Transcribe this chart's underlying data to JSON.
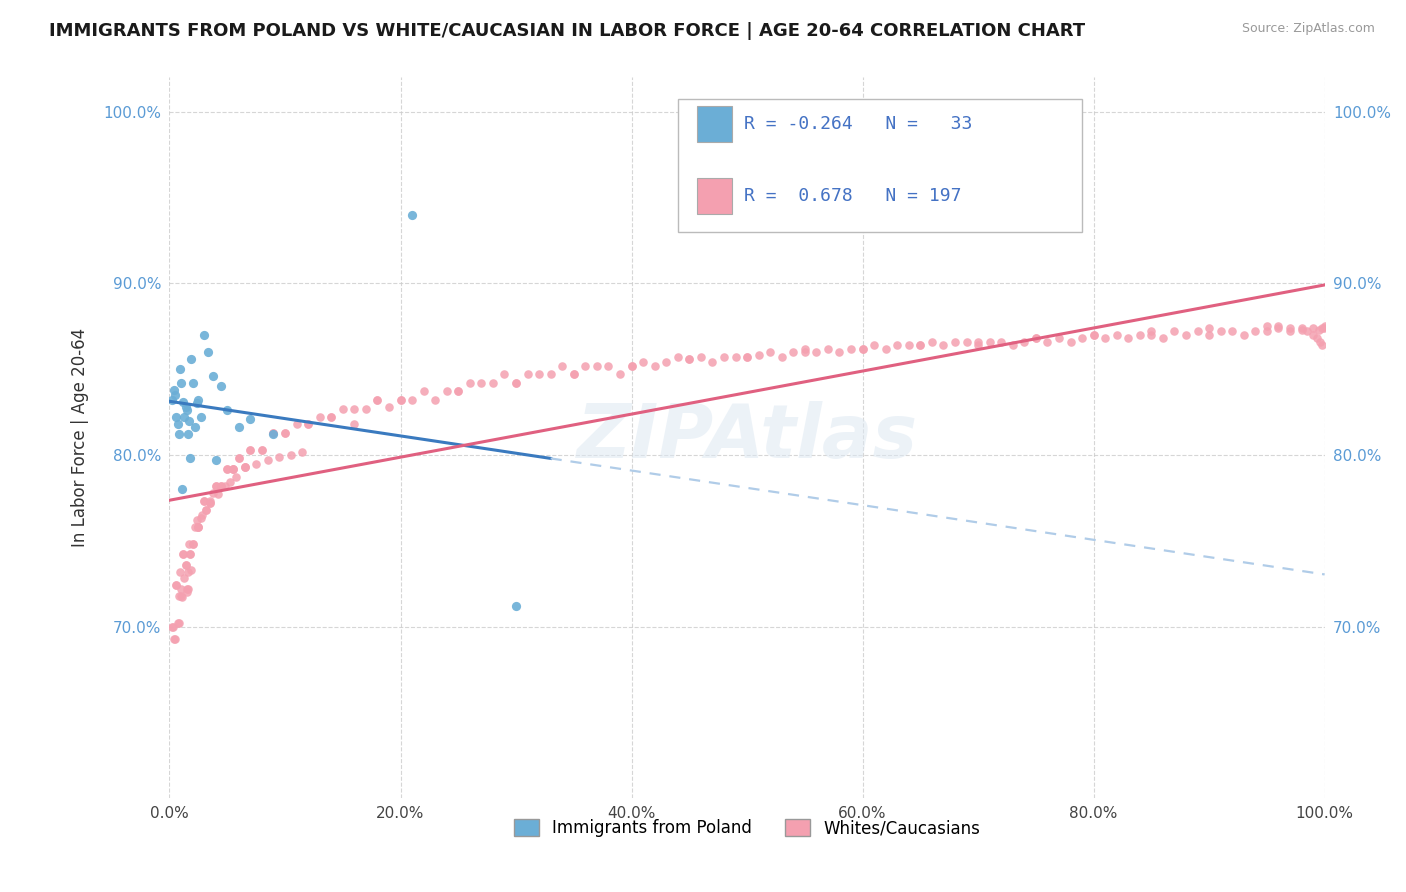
{
  "title": "IMMIGRANTS FROM POLAND VS WHITE/CAUCASIAN IN LABOR FORCE | AGE 20-64 CORRELATION CHART",
  "source": "Source: ZipAtlas.com",
  "ylabel": "In Labor Force | Age 20-64",
  "watermark": "ZIPAtlas",
  "legend_label1": "Immigrants from Poland",
  "legend_label2": "Whites/Caucasians",
  "color_blue": "#6baed6",
  "color_pink": "#f4a0b0",
  "color_blue_line": "#3a7abf",
  "color_pink_line": "#e06080",
  "color_blue_dashed": "#b0cce8",
  "xlim": [
    0.0,
    1.0
  ],
  "ylim": [
    0.6,
    1.02
  ],
  "x_ticks": [
    0.0,
    0.2,
    0.4,
    0.6,
    0.8,
    1.0
  ],
  "x_tick_labels": [
    "0.0%",
    "20.0%",
    "40.0%",
    "60.0%",
    "80.0%",
    "100.0%"
  ],
  "y_ticks": [
    0.7,
    0.8,
    0.9,
    1.0
  ],
  "y_tick_labels": [
    "70.0%",
    "80.0%",
    "90.0%",
    "100.0%"
  ],
  "blue_x": [
    0.002,
    0.004,
    0.005,
    0.006,
    0.007,
    0.008,
    0.009,
    0.01,
    0.011,
    0.012,
    0.013,
    0.014,
    0.015,
    0.016,
    0.017,
    0.018,
    0.019,
    0.02,
    0.022,
    0.024,
    0.025,
    0.027,
    0.03,
    0.033,
    0.038,
    0.04,
    0.045,
    0.05,
    0.06,
    0.07,
    0.09,
    0.21,
    0.3
  ],
  "blue_y": [
    0.832,
    0.838,
    0.835,
    0.822,
    0.818,
    0.812,
    0.85,
    0.842,
    0.78,
    0.831,
    0.822,
    0.828,
    0.826,
    0.812,
    0.82,
    0.798,
    0.856,
    0.842,
    0.816,
    0.83,
    0.832,
    0.822,
    0.87,
    0.86,
    0.846,
    0.797,
    0.84,
    0.826,
    0.816,
    0.821,
    0.812,
    0.94,
    0.712
  ],
  "pink_x": [
    0.003,
    0.005,
    0.006,
    0.007,
    0.008,
    0.009,
    0.01,
    0.011,
    0.012,
    0.013,
    0.014,
    0.015,
    0.016,
    0.017,
    0.018,
    0.019,
    0.02,
    0.022,
    0.024,
    0.025,
    0.027,
    0.03,
    0.032,
    0.035,
    0.038,
    0.04,
    0.045,
    0.05,
    0.055,
    0.06,
    0.065,
    0.07,
    0.08,
    0.09,
    0.1,
    0.11,
    0.12,
    0.13,
    0.14,
    0.15,
    0.16,
    0.17,
    0.18,
    0.19,
    0.2,
    0.21,
    0.22,
    0.23,
    0.24,
    0.25,
    0.26,
    0.27,
    0.28,
    0.29,
    0.3,
    0.31,
    0.32,
    0.33,
    0.34,
    0.35,
    0.36,
    0.37,
    0.38,
    0.39,
    0.4,
    0.41,
    0.42,
    0.43,
    0.44,
    0.45,
    0.46,
    0.47,
    0.48,
    0.49,
    0.5,
    0.51,
    0.52,
    0.53,
    0.54,
    0.55,
    0.56,
    0.57,
    0.58,
    0.59,
    0.6,
    0.61,
    0.62,
    0.63,
    0.64,
    0.65,
    0.66,
    0.67,
    0.68,
    0.69,
    0.7,
    0.71,
    0.72,
    0.73,
    0.74,
    0.75,
    0.76,
    0.77,
    0.78,
    0.79,
    0.8,
    0.81,
    0.82,
    0.83,
    0.84,
    0.85,
    0.86,
    0.87,
    0.88,
    0.89,
    0.9,
    0.91,
    0.92,
    0.93,
    0.94,
    0.95,
    0.96,
    0.97,
    0.98,
    0.99,
    0.995,
    0.998,
    0.999,
    1.0,
    0.002,
    0.004,
    0.006,
    0.008,
    0.01,
    0.012,
    0.014,
    0.016,
    0.018,
    0.02,
    0.025,
    0.03,
    0.035,
    0.04,
    0.045,
    0.05,
    0.055,
    0.06,
    0.065,
    0.07,
    0.08,
    0.09,
    0.1,
    0.12,
    0.14,
    0.16,
    0.18,
    0.2,
    0.25,
    0.3,
    0.35,
    0.4,
    0.45,
    0.5,
    0.55,
    0.6,
    0.65,
    0.7,
    0.75,
    0.8,
    0.85,
    0.9,
    0.95,
    0.96,
    0.97,
    0.98,
    0.985,
    0.99,
    0.993,
    0.996,
    0.998,
    0.055,
    0.065,
    0.075,
    0.085,
    0.095,
    0.105,
    0.115,
    0.015,
    0.025,
    0.035,
    0.028,
    0.032,
    0.042,
    0.048,
    0.052,
    0.058
  ],
  "pink_y": [
    0.7,
    0.693,
    0.724,
    0.702,
    0.718,
    0.732,
    0.722,
    0.717,
    0.742,
    0.728,
    0.736,
    0.722,
    0.732,
    0.748,
    0.742,
    0.733,
    0.748,
    0.758,
    0.762,
    0.758,
    0.763,
    0.773,
    0.768,
    0.772,
    0.778,
    0.782,
    0.782,
    0.792,
    0.792,
    0.798,
    0.793,
    0.803,
    0.803,
    0.813,
    0.813,
    0.818,
    0.818,
    0.822,
    0.822,
    0.827,
    0.818,
    0.827,
    0.832,
    0.828,
    0.832,
    0.832,
    0.837,
    0.832,
    0.837,
    0.837,
    0.842,
    0.842,
    0.842,
    0.847,
    0.842,
    0.847,
    0.847,
    0.847,
    0.852,
    0.847,
    0.852,
    0.852,
    0.852,
    0.847,
    0.852,
    0.854,
    0.852,
    0.854,
    0.857,
    0.856,
    0.857,
    0.854,
    0.857,
    0.857,
    0.857,
    0.858,
    0.86,
    0.857,
    0.86,
    0.862,
    0.86,
    0.862,
    0.86,
    0.862,
    0.862,
    0.864,
    0.862,
    0.864,
    0.864,
    0.864,
    0.866,
    0.864,
    0.866,
    0.866,
    0.864,
    0.866,
    0.866,
    0.864,
    0.866,
    0.868,
    0.866,
    0.868,
    0.866,
    0.868,
    0.87,
    0.868,
    0.87,
    0.868,
    0.87,
    0.87,
    0.868,
    0.872,
    0.87,
    0.872,
    0.87,
    0.872,
    0.872,
    0.87,
    0.872,
    0.872,
    0.874,
    0.872,
    0.874,
    0.874,
    0.873,
    0.874,
    0.874,
    0.875,
    0.7,
    0.693,
    0.724,
    0.702,
    0.718,
    0.742,
    0.736,
    0.722,
    0.742,
    0.748,
    0.758,
    0.773,
    0.772,
    0.782,
    0.782,
    0.792,
    0.792,
    0.798,
    0.793,
    0.803,
    0.803,
    0.813,
    0.813,
    0.818,
    0.822,
    0.827,
    0.832,
    0.832,
    0.837,
    0.842,
    0.847,
    0.852,
    0.856,
    0.857,
    0.86,
    0.862,
    0.864,
    0.866,
    0.868,
    0.87,
    0.872,
    0.874,
    0.875,
    0.875,
    0.874,
    0.873,
    0.872,
    0.87,
    0.868,
    0.866,
    0.864,
    0.792,
    0.793,
    0.795,
    0.797,
    0.799,
    0.8,
    0.802,
    0.72,
    0.758,
    0.773,
    0.765,
    0.768,
    0.777,
    0.782,
    0.784,
    0.787
  ]
}
